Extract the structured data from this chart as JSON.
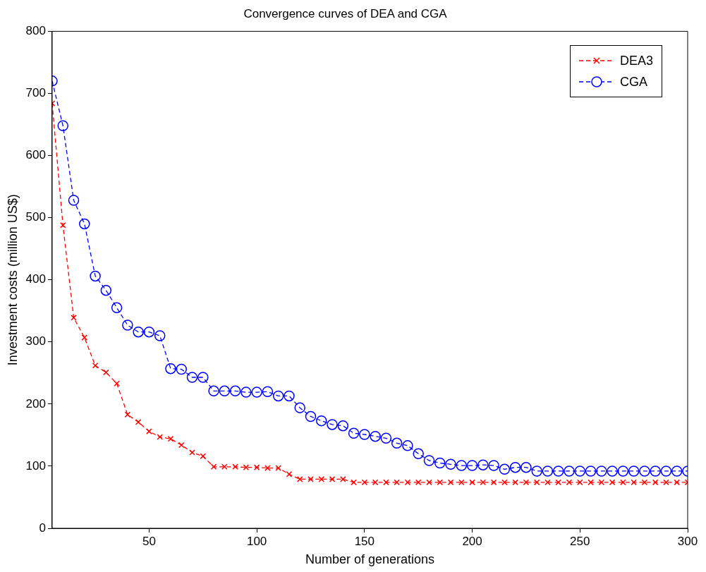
{
  "chart_data": {
    "type": "line",
    "title": "Convergence curves of DEA and CGA",
    "xlabel": "Number of generations",
    "ylabel": "Investment costs (million US$)",
    "x": [
      5,
      10,
      15,
      20,
      25,
      30,
      35,
      40,
      45,
      50,
      55,
      60,
      65,
      70,
      75,
      80,
      85,
      90,
      95,
      100,
      105,
      110,
      115,
      120,
      125,
      130,
      135,
      140,
      145,
      150,
      155,
      160,
      165,
      170,
      175,
      180,
      185,
      190,
      195,
      200,
      205,
      210,
      215,
      220,
      225,
      230,
      235,
      240,
      245,
      250,
      255,
      260,
      265,
      270,
      275,
      280,
      285,
      290,
      295,
      300
    ],
    "series": [
      {
        "name": "DEA3",
        "color": "#ff0000",
        "marker": "cross",
        "line_style": "dashed",
        "values": [
          684,
          488,
          339,
          307,
          262,
          251,
          233,
          183,
          171,
          156,
          147,
          144,
          134,
          122,
          116,
          99,
          99,
          99,
          98,
          98,
          97,
          97,
          87,
          79,
          79,
          79,
          79,
          79,
          74,
          74,
          74,
          74,
          74,
          74,
          74,
          74,
          74,
          74,
          74,
          74,
          74,
          74,
          74,
          74,
          74,
          74,
          74,
          74,
          74,
          74,
          74,
          74,
          74,
          74,
          74,
          74,
          74,
          74,
          74,
          74
        ]
      },
      {
        "name": "CGA",
        "color": "#0000ff",
        "marker": "circle",
        "line_style": "dashed",
        "values": [
          720,
          648,
          528,
          490,
          406,
          383,
          355,
          327,
          316,
          316,
          310,
          257,
          256,
          243,
          243,
          221,
          221,
          221,
          219,
          219,
          220,
          213,
          213,
          194,
          180,
          173,
          167,
          165,
          153,
          151,
          148,
          145,
          137,
          133,
          120,
          109,
          105,
          103,
          101,
          101,
          102,
          101,
          95,
          98,
          98,
          92,
          92,
          92,
          92,
          92,
          92,
          92,
          92,
          92,
          92,
          92,
          92,
          92,
          92,
          92
        ]
      }
    ],
    "xlim": [
      5,
      300
    ],
    "xticks": [
      50,
      100,
      150,
      200,
      250,
      300
    ],
    "ylim": [
      0,
      800
    ],
    "yticks": [
      0,
      100,
      200,
      300,
      400,
      500,
      600,
      700,
      800
    ],
    "grid": false,
    "legend": "top right"
  }
}
